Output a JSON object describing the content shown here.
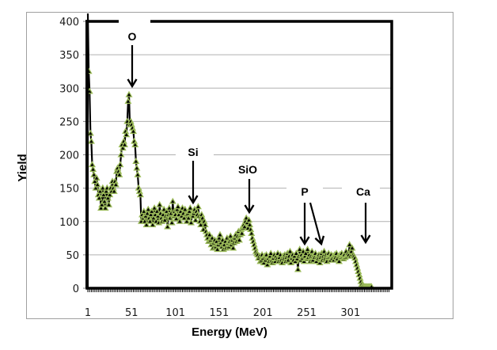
{
  "chart_data": {
    "type": "line",
    "title": "",
    "xlabel": "Energy (MeV)",
    "ylabel": "Yield",
    "xlim": [
      1,
      345
    ],
    "ylim": [
      0,
      400
    ],
    "yticks": [
      0,
      50,
      100,
      150,
      200,
      250,
      300,
      350,
      400
    ],
    "xticks": [
      1,
      51,
      101,
      151,
      201,
      251,
      301
    ],
    "grid": "horizontal",
    "legend": "none",
    "colors": {
      "line": "#000000",
      "marker_edge": "#9bbb59",
      "marker_fill": "#000000",
      "grid": "#b0b0b0",
      "frame": "#a0a0a0"
    },
    "series": [
      {
        "name": "Yield",
        "marker": "triangle",
        "values": [
          420,
          325,
          295,
          232,
          220,
          185,
          178,
          170,
          160,
          150,
          165,
          155,
          140,
          135,
          145,
          120,
          125,
          150,
          140,
          130,
          120,
          145,
          150,
          135,
          125,
          140,
          150,
          145,
          160,
          150,
          145,
          160,
          155,
          175,
          180,
          175,
          170,
          185,
          200,
          215,
          210,
          220,
          215,
          235,
          230,
          250,
          280,
          290,
          245,
          250,
          245,
          240,
          235,
          220,
          215,
          190,
          180,
          170,
          150,
          145,
          140,
          100,
          110,
          105,
          115,
          100,
          108,
          95,
          112,
          118,
          105,
          100,
          110,
          115,
          95,
          105,
          120,
          110,
          100,
          115,
          108,
          98,
          125,
          112,
          105,
          100,
          110,
          118,
          102,
          108,
          115,
          92,
          110,
          120,
          105,
          112,
          98,
          130,
          108,
          115,
          110,
          104,
          118,
          122,
          110,
          100,
          115,
          108,
          120,
          112,
          105,
          118,
          110,
          100,
          112,
          105,
          115,
          120,
          98,
          110,
          108,
          112,
          118,
          102,
          115,
          110,
          122,
          108,
          100,
          95,
          110,
          105,
          88,
          100,
          95,
          85,
          80,
          75,
          70,
          80,
          72,
          65,
          75,
          60,
          68,
          72,
          62,
          70,
          58,
          65,
          75,
          80,
          68,
          62,
          72,
          58,
          65,
          70,
          60,
          75,
          68,
          62,
          70,
          78,
          65,
          72,
          60,
          68,
          75,
          80,
          70,
          78,
          85,
          72,
          80,
          88,
          82,
          90,
          95,
          92,
          100,
          105,
          98,
          90,
          102,
          95,
          88,
          82,
          75,
          70,
          65,
          60,
          55,
          52,
          50,
          45,
          48,
          40,
          42,
          50,
          45,
          38,
          48,
          42,
          50,
          35,
          45,
          40,
          48,
          52,
          42,
          38,
          45,
          50,
          40,
          48,
          44,
          52,
          40,
          46,
          50,
          42,
          38,
          48,
          44,
          50,
          40,
          46,
          52,
          42,
          48,
          55,
          38,
          45,
          50,
          42,
          48,
          40,
          52,
          44,
          28,
          48,
          58,
          42,
          50,
          45,
          55,
          40,
          48,
          52,
          44,
          58,
          46,
          50,
          40,
          48,
          55,
          42,
          50,
          46,
          52,
          40,
          48,
          44,
          50,
          38,
          46,
          52,
          42,
          48,
          55,
          44,
          50,
          40,
          46,
          52,
          48,
          42,
          50,
          45,
          48,
          42,
          50,
          46,
          52,
          44,
          48,
          40,
          50,
          46,
          52,
          48,
          44,
          50,
          46,
          55,
          48,
          52,
          50,
          65,
          48,
          55,
          60,
          50,
          48,
          45,
          40,
          35,
          30,
          25,
          20,
          15,
          10,
          6,
          4,
          3,
          2,
          2,
          2,
          2,
          2,
          2,
          2,
          2,
          2
        ]
      }
    ],
    "annotations": [
      {
        "label": "O",
        "target_x": 51,
        "target_y": 295
      },
      {
        "label": "Si",
        "target_x": 122,
        "target_y": 128
      },
      {
        "label": "SiO",
        "target_x": 186,
        "target_y": 110
      },
      {
        "label": "P",
        "target_x": 250,
        "target_y": 62
      },
      {
        "label": "P",
        "target_x": 265,
        "target_y": 62
      },
      {
        "label": "Ca",
        "target_x": 318,
        "target_y": 62
      }
    ]
  }
}
